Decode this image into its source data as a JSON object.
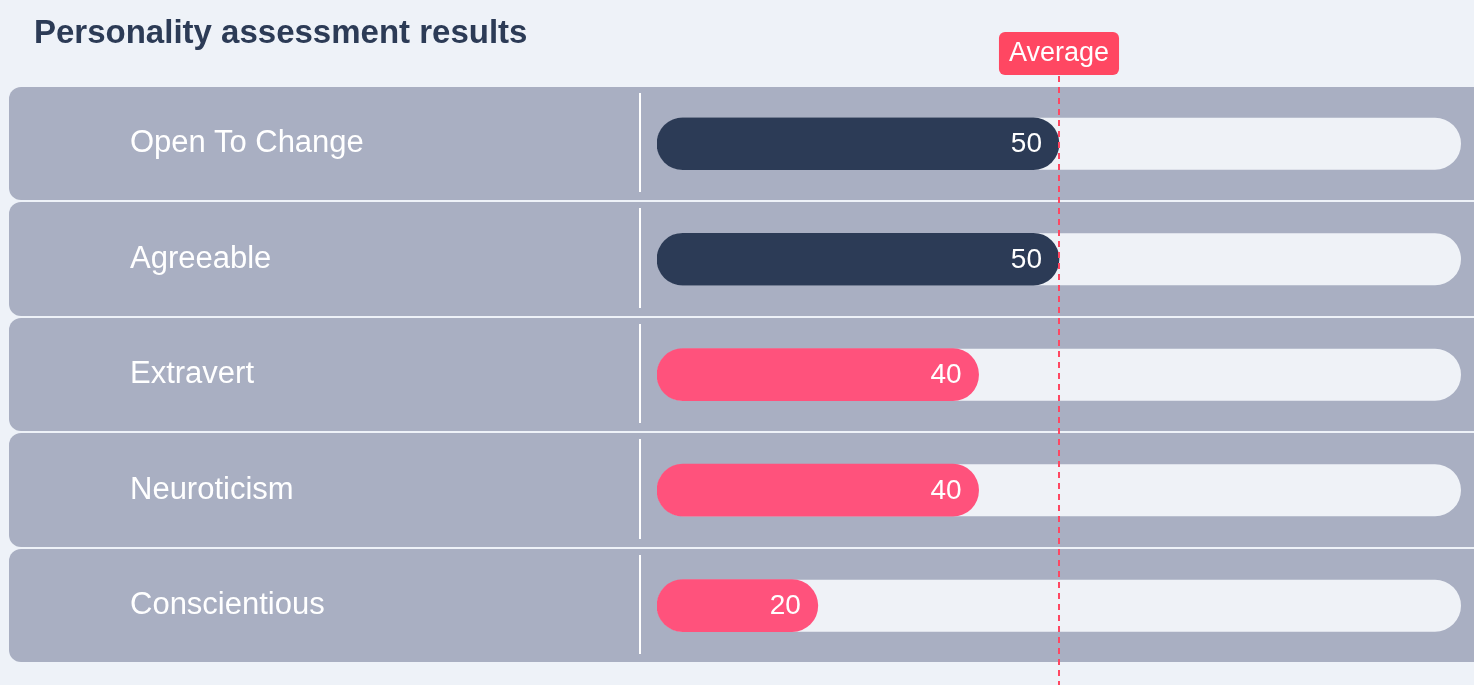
{
  "chart_data": {
    "type": "bar",
    "orientation": "horizontal",
    "title": "Personality assessment results",
    "categories": [
      "Open To Change",
      "Agreeable",
      "Extravert",
      "Neuroticism",
      "Conscientious"
    ],
    "values": [
      50,
      50,
      40,
      40,
      20
    ],
    "colors": [
      "#2c3b56",
      "#2c3b56",
      "#ff527c",
      "#ff527c",
      "#ff527c"
    ],
    "xlim": [
      0,
      100
    ],
    "data_labels": true,
    "ref_lines": [
      {
        "axis": "x",
        "value": 50,
        "label": "Average",
        "color": "#ff4762",
        "line_style": "dashed"
      }
    ],
    "grid": false,
    "legend": false,
    "tick_labels": "y"
  }
}
